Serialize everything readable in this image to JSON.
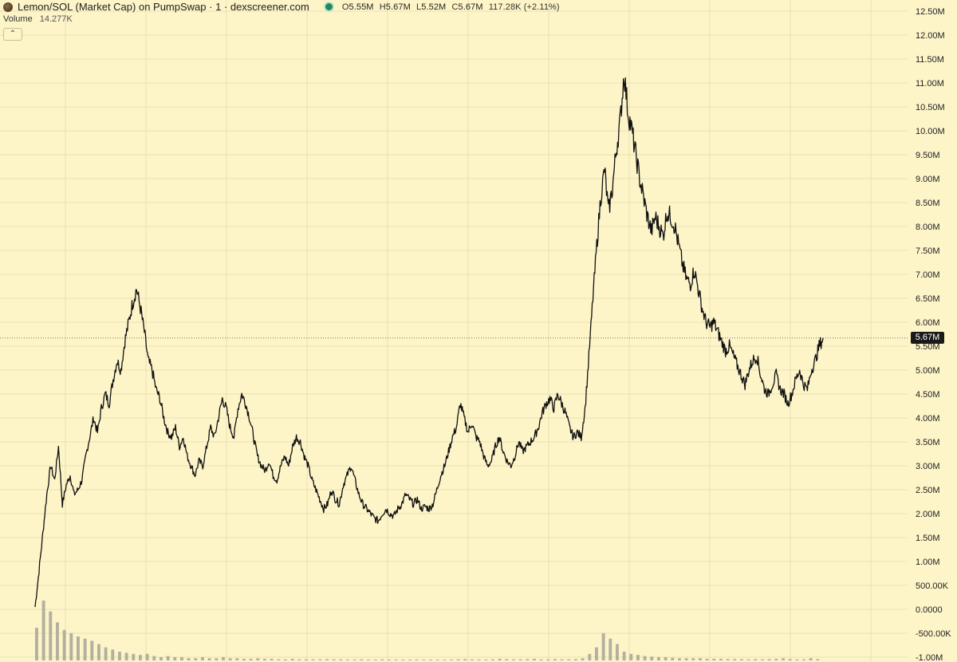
{
  "header": {
    "title": "Lemon/SOL (Market Cap) on PumpSwap · 1 · dexscreener.com",
    "ohlc": {
      "open": "5.55M",
      "high": "5.67M",
      "low": "5.52M",
      "close": "5.67M",
      "change": "117.28K (+2.11%)"
    },
    "volume_label": "Volume",
    "volume_value": "14.277K",
    "collapse_icon": "chevron-up-icon"
  },
  "colors": {
    "background": "#fdf4c8",
    "grid": "#e9dfb2",
    "price_line": "#111111",
    "volume_bars": "#9b9a92",
    "current_price_line": "#777777",
    "price_tag_bg": "#1a1a1a",
    "status_dot": "#1f8a5a"
  },
  "chart_data": {
    "type": "line",
    "price_scale": {
      "ticks": [
        "12.50M",
        "12.00M",
        "11.50M",
        "11.00M",
        "10.50M",
        "10.00M",
        "9.50M",
        "9.00M",
        "8.50M",
        "8.00M",
        "7.50M",
        "7.00M",
        "6.50M",
        "6.00M",
        "5.50M",
        "5.00M",
        "4.50M",
        "4.00M",
        "3.50M",
        "3.00M",
        "2.50M",
        "2.00M",
        "1.50M",
        "1.00M",
        "500.00K",
        "0.0000",
        "-500.00K",
        "-1.00M"
      ],
      "tick_values": [
        12.5,
        12.0,
        11.5,
        11.0,
        10.5,
        10.0,
        9.5,
        9.0,
        8.5,
        8.0,
        7.5,
        7.0,
        6.5,
        6.0,
        5.5,
        5.0,
        4.5,
        4.0,
        3.5,
        3.0,
        2.5,
        2.0,
        1.5,
        1.0,
        0.5,
        0.0,
        -0.5,
        -1.0
      ],
      "unit": "M",
      "ylim": [
        -1.0,
        12.7
      ]
    },
    "current_price": {
      "value": 5.67,
      "label": "5.67M"
    },
    "grid": true,
    "series": [
      {
        "values": [
          0.05,
          0.8,
          1.6,
          2.4,
          3.0,
          2.7,
          3.4,
          2.2,
          2.6,
          2.8,
          2.4,
          2.5,
          2.7,
          3.2,
          3.6,
          4.0,
          3.7,
          4.2,
          4.5,
          4.3,
          4.8,
          5.2,
          5.0,
          5.6,
          6.0,
          6.4,
          6.7,
          6.3,
          5.8,
          5.2,
          5.0,
          4.6,
          4.4,
          4.0,
          3.7,
          3.6,
          3.8,
          3.4,
          3.6,
          3.2,
          3.0,
          2.8,
          3.1,
          3.0,
          3.4,
          3.8,
          3.6,
          4.0,
          4.4,
          4.2,
          3.8,
          3.6,
          4.2,
          4.5,
          4.3,
          4.0,
          3.6,
          3.2,
          3.0,
          2.9,
          3.1,
          2.8,
          2.7,
          3.0,
          3.2,
          3.0,
          3.4,
          3.6,
          3.5,
          3.2,
          3.0,
          2.7,
          2.5,
          2.3,
          2.1,
          2.2,
          2.5,
          2.3,
          2.2,
          2.6,
          2.8,
          3.0,
          2.7,
          2.4,
          2.2,
          2.1,
          2.0,
          1.9,
          1.85,
          2.0,
          2.1,
          2.0,
          1.95,
          2.1,
          2.2,
          2.4,
          2.3,
          2.2,
          2.3,
          2.1,
          2.15,
          2.1,
          2.2,
          2.5,
          2.8,
          3.0,
          3.3,
          3.6,
          3.8,
          4.3,
          4.0,
          3.7,
          3.9,
          3.6,
          3.5,
          3.2,
          3.0,
          3.1,
          3.4,
          3.6,
          3.3,
          3.1,
          3.0,
          3.2,
          3.5,
          3.3,
          3.4,
          3.5,
          3.6,
          3.8,
          4.1,
          4.3,
          4.4,
          4.2,
          4.5,
          4.3,
          4.1,
          3.8,
          3.6,
          3.7,
          3.6,
          4.2,
          5.3,
          6.5,
          7.6,
          8.6,
          9.2,
          8.3,
          8.8,
          9.6,
          10.2,
          11.2,
          10.4,
          10.0,
          9.5,
          9.0,
          8.6,
          8.2,
          7.9,
          8.2,
          8.0,
          7.8,
          8.3,
          8.2,
          8.0,
          7.6,
          7.2,
          6.9,
          6.8,
          7.1,
          6.7,
          6.3,
          6.0,
          5.9,
          6.0,
          5.8,
          5.6,
          5.4,
          5.5,
          5.3,
          5.1,
          4.9,
          4.7,
          5.0,
          5.2,
          5.3,
          4.9,
          4.6,
          4.5,
          4.7,
          4.9,
          4.6,
          4.5,
          4.3,
          4.5,
          4.8,
          5.0,
          4.7,
          4.6,
          5.0,
          5.2,
          5.5,
          5.67
        ]
      }
    ],
    "volume": {
      "ylim": [
        0,
        1.1
      ],
      "values": [
        0.3,
        0.55,
        0.45,
        0.35,
        0.28,
        0.25,
        0.22,
        0.2,
        0.18,
        0.15,
        0.12,
        0.1,
        0.08,
        0.07,
        0.06,
        0.05,
        0.06,
        0.04,
        0.03,
        0.04,
        0.03,
        0.03,
        0.02,
        0.02,
        0.03,
        0.02,
        0.02,
        0.03,
        0.02,
        0.02,
        0.015,
        0.015,
        0.02,
        0.015,
        0.015,
        0.01,
        0.01,
        0.015,
        0.01,
        0.01,
        0.01,
        0.01,
        0.012,
        0.01,
        0.01,
        0.008,
        0.008,
        0.01,
        0.008,
        0.008,
        0.01,
        0.008,
        0.008,
        0.006,
        0.006,
        0.008,
        0.006,
        0.006,
        0.006,
        0.006,
        0.008,
        0.01,
        0.012,
        0.01,
        0.008,
        0.008,
        0.01,
        0.015,
        0.012,
        0.01,
        0.01,
        0.012,
        0.015,
        0.01,
        0.01,
        0.012,
        0.01,
        0.01,
        0.012,
        0.02,
        0.06,
        0.12,
        0.25,
        0.2,
        0.15,
        0.08,
        0.06,
        0.05,
        0.04,
        0.035,
        0.03,
        0.03,
        0.025,
        0.02,
        0.02,
        0.02,
        0.02,
        0.015,
        0.015,
        0.015,
        0.012,
        0.012,
        0.012,
        0.01,
        0.012,
        0.01,
        0.012,
        0.015,
        0.02,
        0.012,
        0.01,
        0.01,
        0.02,
        0.012
      ]
    }
  }
}
